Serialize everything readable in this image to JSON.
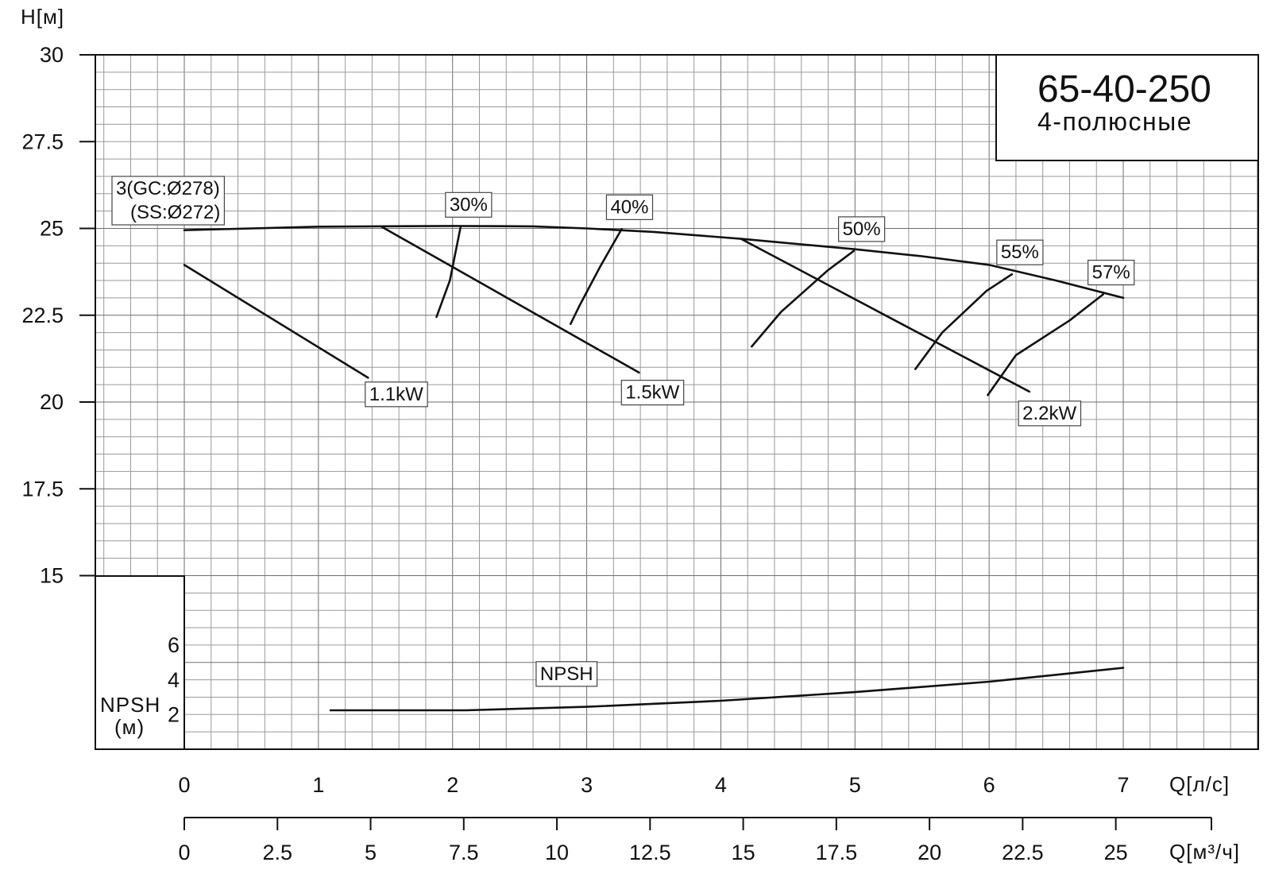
{
  "chart_data": {
    "type": "line",
    "title": "65-40-250",
    "subtitle": "4-полюсные",
    "ylabel": "H[м]",
    "xlabel": "Q[л/с]",
    "xlabel_secondary": "Q[м³/ч]",
    "npsh_label": "NPSH",
    "npsh_unit": "(м)",
    "xlim": [
      -0.66,
      8.0
    ],
    "ylim": [
      15,
      30
    ],
    "x_ticks": [
      "0",
      "1",
      "2",
      "3",
      "4",
      "5",
      "6",
      "7"
    ],
    "x_tick_values": [
      0,
      1,
      2,
      3,
      4,
      5,
      6,
      7
    ],
    "x2_ticks": [
      "0",
      "2.5",
      "5",
      "7.5",
      "10",
      "12.5",
      "15",
      "17.5",
      "20",
      "22.5",
      "25"
    ],
    "x2_tick_values": [
      0,
      2.5,
      5,
      7.5,
      10,
      12.5,
      15,
      17.5,
      20,
      22.5,
      25
    ],
    "y_ticks": [
      "30",
      "27.5",
      "25",
      "22.5",
      "20",
      "17.5",
      "15"
    ],
    "y_tick_values": [
      30,
      27.5,
      25,
      22.5,
      20,
      17.5,
      15
    ],
    "npsh_ticks": [
      "6",
      "4",
      "2"
    ],
    "npsh_tick_values": [
      6,
      4,
      2
    ],
    "grid": true,
    "head_curve": {
      "name": "3(GC:Ø278)\n(SS:Ø272)",
      "points": [
        [
          0,
          24.95
        ],
        [
          1,
          25.05
        ],
        [
          2,
          25.07
        ],
        [
          2.6,
          25.06
        ],
        [
          3,
          25.0
        ],
        [
          3.5,
          24.9
        ],
        [
          4.15,
          24.7
        ],
        [
          5,
          24.4
        ],
        [
          5.5,
          24.2
        ],
        [
          6,
          23.95
        ],
        [
          6.5,
          23.5
        ],
        [
          7,
          23.0
        ]
      ]
    },
    "power_lines": [
      {
        "name": "1.1kW",
        "points": [
          [
            0,
            23.95
          ],
          [
            1.37,
            20.7
          ]
        ]
      },
      {
        "name": "1.5kW",
        "points": [
          [
            1.47,
            25.05
          ],
          [
            3.39,
            20.85
          ]
        ]
      },
      {
        "name": "2.2kW",
        "points": [
          [
            4.15,
            24.7
          ],
          [
            6.3,
            20.3
          ]
        ]
      }
    ],
    "efficiency_curves": [
      {
        "name": "30%",
        "points": [
          [
            1.88,
            22.45
          ],
          [
            1.98,
            23.5
          ],
          [
            2.06,
            25.05
          ]
        ]
      },
      {
        "name": "40%",
        "points": [
          [
            2.88,
            22.25
          ],
          [
            2.95,
            22.8
          ],
          [
            3.1,
            23.9
          ],
          [
            3.26,
            24.98
          ]
        ]
      },
      {
        "name": "50%",
        "points": [
          [
            4.23,
            21.6
          ],
          [
            4.45,
            22.6
          ],
          [
            4.8,
            23.8
          ],
          [
            4.99,
            24.35
          ]
        ]
      },
      {
        "name": "55%",
        "points": [
          [
            5.45,
            20.95
          ],
          [
            5.65,
            22.0
          ],
          [
            5.98,
            23.2
          ],
          [
            6.17,
            23.68
          ]
        ]
      },
      {
        "name": "57%",
        "points": [
          [
            5.99,
            20.2
          ],
          [
            6.2,
            21.35
          ],
          [
            6.6,
            22.35
          ],
          [
            6.85,
            23.1
          ]
        ]
      }
    ],
    "npsh_curve": {
      "name": "NPSH",
      "points": [
        [
          1.09,
          2.25
        ],
        [
          2.1,
          2.25
        ],
        [
          3.0,
          2.45
        ],
        [
          4.0,
          2.8
        ],
        [
          5.0,
          3.3
        ],
        [
          6.0,
          3.9
        ],
        [
          6.5,
          4.3
        ],
        [
          7.0,
          4.7
        ]
      ]
    }
  }
}
